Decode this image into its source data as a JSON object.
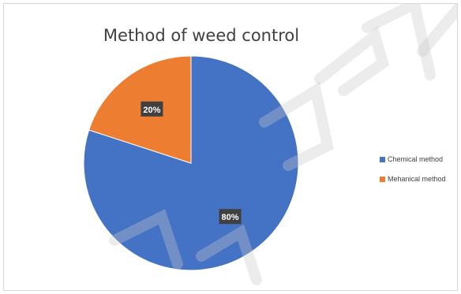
{
  "chart_data": {
    "type": "pie",
    "title": "Method of weed control",
    "categories": [
      "Chemical method",
      "Mehanical method"
    ],
    "values": [
      80,
      20
    ],
    "data_labels": [
      "80%",
      "20%"
    ],
    "colors": [
      "#4472c4",
      "#ed7d31"
    ],
    "start_angle_deg": 0,
    "direction": "clockwise",
    "legend_position": "right"
  }
}
